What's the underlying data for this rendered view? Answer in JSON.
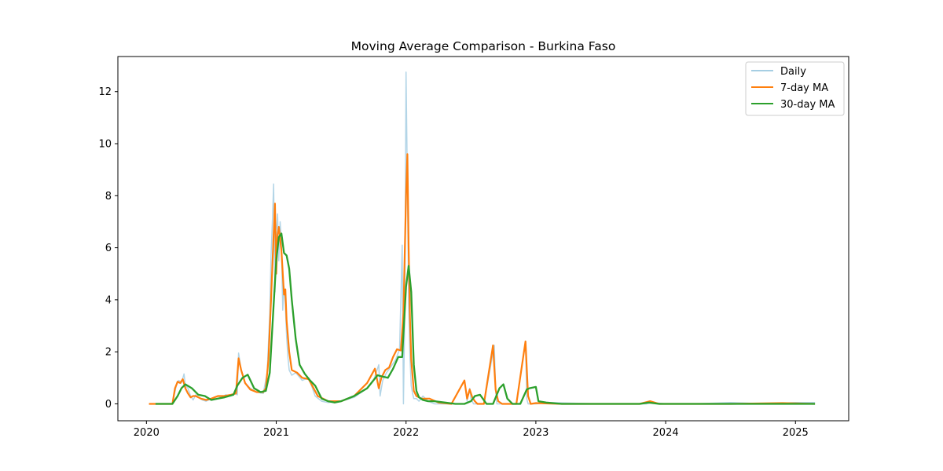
{
  "chart_data": {
    "type": "line",
    "title": "Moving Average Comparison - Burkina Faso",
    "xlabel": "",
    "ylabel": "",
    "xlim": [
      2019.78,
      2025.41
    ],
    "ylim": [
      -0.65,
      13.35
    ],
    "x_ticks": [
      2020,
      2021,
      2022,
      2023,
      2024,
      2025
    ],
    "x_tick_labels": [
      "2020",
      "2021",
      "2022",
      "2023",
      "2024",
      "2025"
    ],
    "y_ticks": [
      0,
      2,
      4,
      6,
      8,
      10,
      12
    ],
    "y_tick_labels": [
      "0",
      "2",
      "4",
      "6",
      "8",
      "10",
      "12"
    ],
    "grid": false,
    "legend_position": "top-right",
    "series": [
      {
        "name": "Daily",
        "color": "#a6cee3",
        "x": [
          2020.02,
          2020.2,
          2020.23,
          2020.25,
          2020.27,
          2020.29,
          2020.3,
          2020.32,
          2020.34,
          2020.36,
          2020.38,
          2020.4,
          2020.43,
          2020.46,
          2020.5,
          2020.55,
          2020.58,
          2020.61,
          2020.65,
          2020.68,
          2020.7,
          2020.71,
          2020.73,
          2020.76,
          2020.8,
          2020.85,
          2020.9,
          2020.93,
          2020.95,
          2020.96,
          2020.97,
          2020.98,
          2020.99,
          2021.0,
          2021.01,
          2021.02,
          2021.03,
          2021.04,
          2021.05,
          2021.06,
          2021.07,
          2021.08,
          2021.09,
          2021.1,
          2021.12,
          2021.15,
          2021.2,
          2021.25,
          2021.3,
          2021.35,
          2021.4,
          2021.5,
          2021.6,
          2021.7,
          2021.75,
          2021.79,
          2021.8,
          2021.82,
          2021.85,
          2021.88,
          2021.92,
          2021.95,
          2021.97,
          2021.98,
          2021.99,
          2022.0,
          2022.01,
          2022.02,
          2022.03,
          2022.04,
          2022.05,
          2022.06,
          2022.08,
          2022.1,
          2022.13,
          2022.17,
          2022.22,
          2022.28,
          2022.35,
          2022.45,
          2022.47,
          2022.49,
          2022.5,
          2022.52,
          2022.54,
          2022.6,
          2022.68,
          2022.69,
          2022.7,
          2022.75,
          2022.85,
          2022.92,
          2022.93,
          2022.94,
          2022.96,
          2023.0,
          2023.1,
          2023.5,
          2023.85,
          2023.9,
          2024.0,
          2024.2,
          2024.5,
          2024.8,
          2025.0,
          2025.15
        ],
        "values": [
          0,
          0,
          0.7,
          0.9,
          0.8,
          1.15,
          0.7,
          0.6,
          0.3,
          0.15,
          0.35,
          0.25,
          0.15,
          0.1,
          0.2,
          0.3,
          0.25,
          0.35,
          0.3,
          0.4,
          0.35,
          1.95,
          1.3,
          0.8,
          0.6,
          0.45,
          0.4,
          1.2,
          3.5,
          5.7,
          7.0,
          8.45,
          4.3,
          6.5,
          7.3,
          5.5,
          7.0,
          6.2,
          3.6,
          4.5,
          3.8,
          2.6,
          1.8,
          1.3,
          1.1,
          1.2,
          0.9,
          1.0,
          0.3,
          0.1,
          0.05,
          0.1,
          0.25,
          0.6,
          0.9,
          1.5,
          0.3,
          0.9,
          1.2,
          1.4,
          1.7,
          2.1,
          6.1,
          0,
          3.5,
          12.75,
          8.5,
          3.8,
          1.8,
          0.7,
          0.4,
          0.2,
          0.2,
          0.1,
          0.3,
          0.1,
          0,
          0,
          0,
          0.9,
          0.1,
          0.6,
          0.2,
          0,
          0,
          0,
          2.25,
          0.5,
          0,
          0,
          0,
          2.4,
          0.2,
          0,
          0,
          0,
          0.05,
          0,
          0,
          0.05,
          0,
          0,
          0.05,
          0,
          0.05,
          0.05
        ]
      },
      {
        "name": "7-day MA",
        "color": "#ff7f0e",
        "x": [
          2020.02,
          2020.2,
          2020.22,
          2020.24,
          2020.26,
          2020.28,
          2020.3,
          2020.32,
          2020.34,
          2020.36,
          2020.38,
          2020.42,
          2020.46,
          2020.5,
          2020.55,
          2020.6,
          2020.65,
          2020.69,
          2020.7,
          2020.71,
          2020.73,
          2020.76,
          2020.8,
          2020.85,
          2020.9,
          2020.92,
          2020.94,
          2020.96,
          2020.98,
          2020.99,
          2021.0,
          2021.01,
          2021.02,
          2021.04,
          2021.06,
          2021.07,
          2021.08,
          2021.1,
          2021.12,
          2021.16,
          2021.2,
          2021.25,
          2021.32,
          2021.4,
          2021.5,
          2021.6,
          2021.7,
          2021.76,
          2021.79,
          2021.81,
          2021.84,
          2021.87,
          2021.9,
          2021.93,
          2021.96,
          2021.98,
          2022.0,
          2022.01,
          2022.02,
          2022.03,
          2022.04,
          2022.06,
          2022.08,
          2022.12,
          2022.18,
          2022.25,
          2022.35,
          2022.45,
          2022.47,
          2022.49,
          2022.51,
          2022.53,
          2022.55,
          2022.6,
          2022.67,
          2022.69,
          2022.71,
          2022.74,
          2022.85,
          2022.92,
          2022.94,
          2022.96,
          2023.0,
          2023.2,
          2023.5,
          2023.8,
          2023.88,
          2023.95,
          2024.1,
          2024.5,
          2024.9,
          2025.15
        ],
        "values": [
          0,
          0,
          0.6,
          0.85,
          0.8,
          0.95,
          0.6,
          0.4,
          0.25,
          0.3,
          0.3,
          0.2,
          0.15,
          0.2,
          0.3,
          0.3,
          0.35,
          0.4,
          1.1,
          1.75,
          1.3,
          0.8,
          0.55,
          0.45,
          0.45,
          0.6,
          1.7,
          4.0,
          6.5,
          7.7,
          5.0,
          6.5,
          6.8,
          5.9,
          4.2,
          4.4,
          3.2,
          2.0,
          1.3,
          1.2,
          1.0,
          0.95,
          0.3,
          0.1,
          0.1,
          0.3,
          0.8,
          1.35,
          0.6,
          1.0,
          1.3,
          1.4,
          1.8,
          2.1,
          2.05,
          3.5,
          8.0,
          9.6,
          6.0,
          3.3,
          1.7,
          0.5,
          0.3,
          0.2,
          0.2,
          0.05,
          0,
          0.9,
          0.2,
          0.55,
          0.25,
          0.1,
          0,
          0,
          2.25,
          0.55,
          0.1,
          0,
          0,
          2.4,
          0.3,
          0,
          0.03,
          0,
          0,
          0,
          0.1,
          0,
          0,
          0,
          0.03,
          0
        ]
      },
      {
        "name": "30-day MA",
        "color": "#2ca02c",
        "x": [
          2020.07,
          2020.14,
          2020.2,
          2020.24,
          2020.27,
          2020.3,
          2020.35,
          2020.4,
          2020.45,
          2020.5,
          2020.55,
          2020.6,
          2020.67,
          2020.7,
          2020.74,
          2020.78,
          2020.83,
          2020.88,
          2020.92,
          2020.95,
          2020.98,
          2021.0,
          2021.02,
          2021.04,
          2021.06,
          2021.08,
          2021.1,
          2021.12,
          2021.15,
          2021.18,
          2021.22,
          2021.26,
          2021.3,
          2021.35,
          2021.4,
          2021.45,
          2021.5,
          2021.6,
          2021.7,
          2021.78,
          2021.82,
          2021.86,
          2021.9,
          2021.94,
          2021.97,
          2022.0,
          2022.02,
          2022.04,
          2022.06,
          2022.08,
          2022.1,
          2022.13,
          2022.17,
          2022.22,
          2022.3,
          2022.38,
          2022.45,
          2022.5,
          2022.53,
          2022.57,
          2022.62,
          2022.67,
          2022.72,
          2022.75,
          2022.78,
          2022.82,
          2022.88,
          2022.93,
          2022.95,
          2023.0,
          2023.02,
          2023.08,
          2023.2,
          2023.5,
          2023.8,
          2023.87,
          2023.95,
          2024.1,
          2024.5,
          2024.9,
          2025.15
        ],
        "values": [
          0,
          0,
          0,
          0.3,
          0.6,
          0.75,
          0.6,
          0.35,
          0.3,
          0.15,
          0.2,
          0.25,
          0.35,
          0.7,
          1.0,
          1.12,
          0.6,
          0.45,
          0.5,
          1.2,
          3.8,
          5.5,
          6.4,
          6.55,
          5.8,
          5.7,
          5.2,
          4.0,
          2.5,
          1.5,
          1.15,
          0.9,
          0.7,
          0.2,
          0.1,
          0.05,
          0.1,
          0.3,
          0.6,
          1.1,
          1.05,
          1.0,
          1.35,
          1.8,
          1.8,
          4.5,
          5.3,
          4.3,
          1.5,
          0.5,
          0.25,
          0.15,
          0.1,
          0.1,
          0.05,
          0,
          0,
          0.1,
          0.3,
          0.35,
          0,
          0,
          0.6,
          0.75,
          0.2,
          0,
          0,
          0.55,
          0.6,
          0.65,
          0.1,
          0.05,
          0,
          0,
          0,
          0.05,
          0,
          0,
          0,
          0,
          0
        ]
      }
    ]
  }
}
